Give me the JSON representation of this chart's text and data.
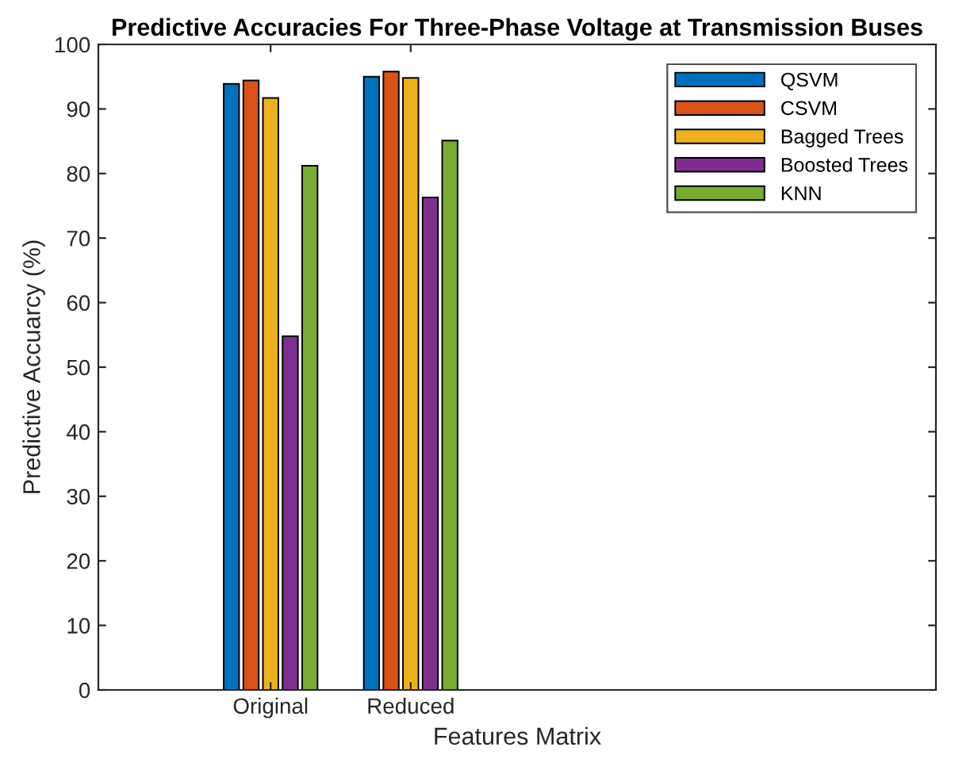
{
  "chart_data": {
    "type": "bar",
    "title": "Predictive Accuracies For Three-Phase Voltage at Transmission Buses",
    "xlabel": "Features Matrix",
    "ylabel": "Predictive Accuarcy (%)",
    "categories": [
      "Original",
      "Reduced"
    ],
    "series": [
      {
        "name": "QSVM",
        "color": "#0072bd",
        "values": [
          93.9,
          95.0
        ]
      },
      {
        "name": "CSVM",
        "color": "#d95319",
        "values": [
          94.4,
          95.8
        ]
      },
      {
        "name": "Bagged Trees",
        "color": "#edb120",
        "values": [
          91.7,
          94.8
        ]
      },
      {
        "name": "Boosted Trees",
        "color": "#7e2f8e",
        "values": [
          54.8,
          76.3
        ]
      },
      {
        "name": "KNN",
        "color": "#77ac30",
        "values": [
          81.2,
          85.1
        ]
      }
    ],
    "ylim": [
      0,
      100
    ],
    "yticks": [
      0,
      10,
      20,
      30,
      40,
      50,
      60,
      70,
      80,
      90,
      100
    ],
    "grid": false,
    "legend": "top right"
  }
}
